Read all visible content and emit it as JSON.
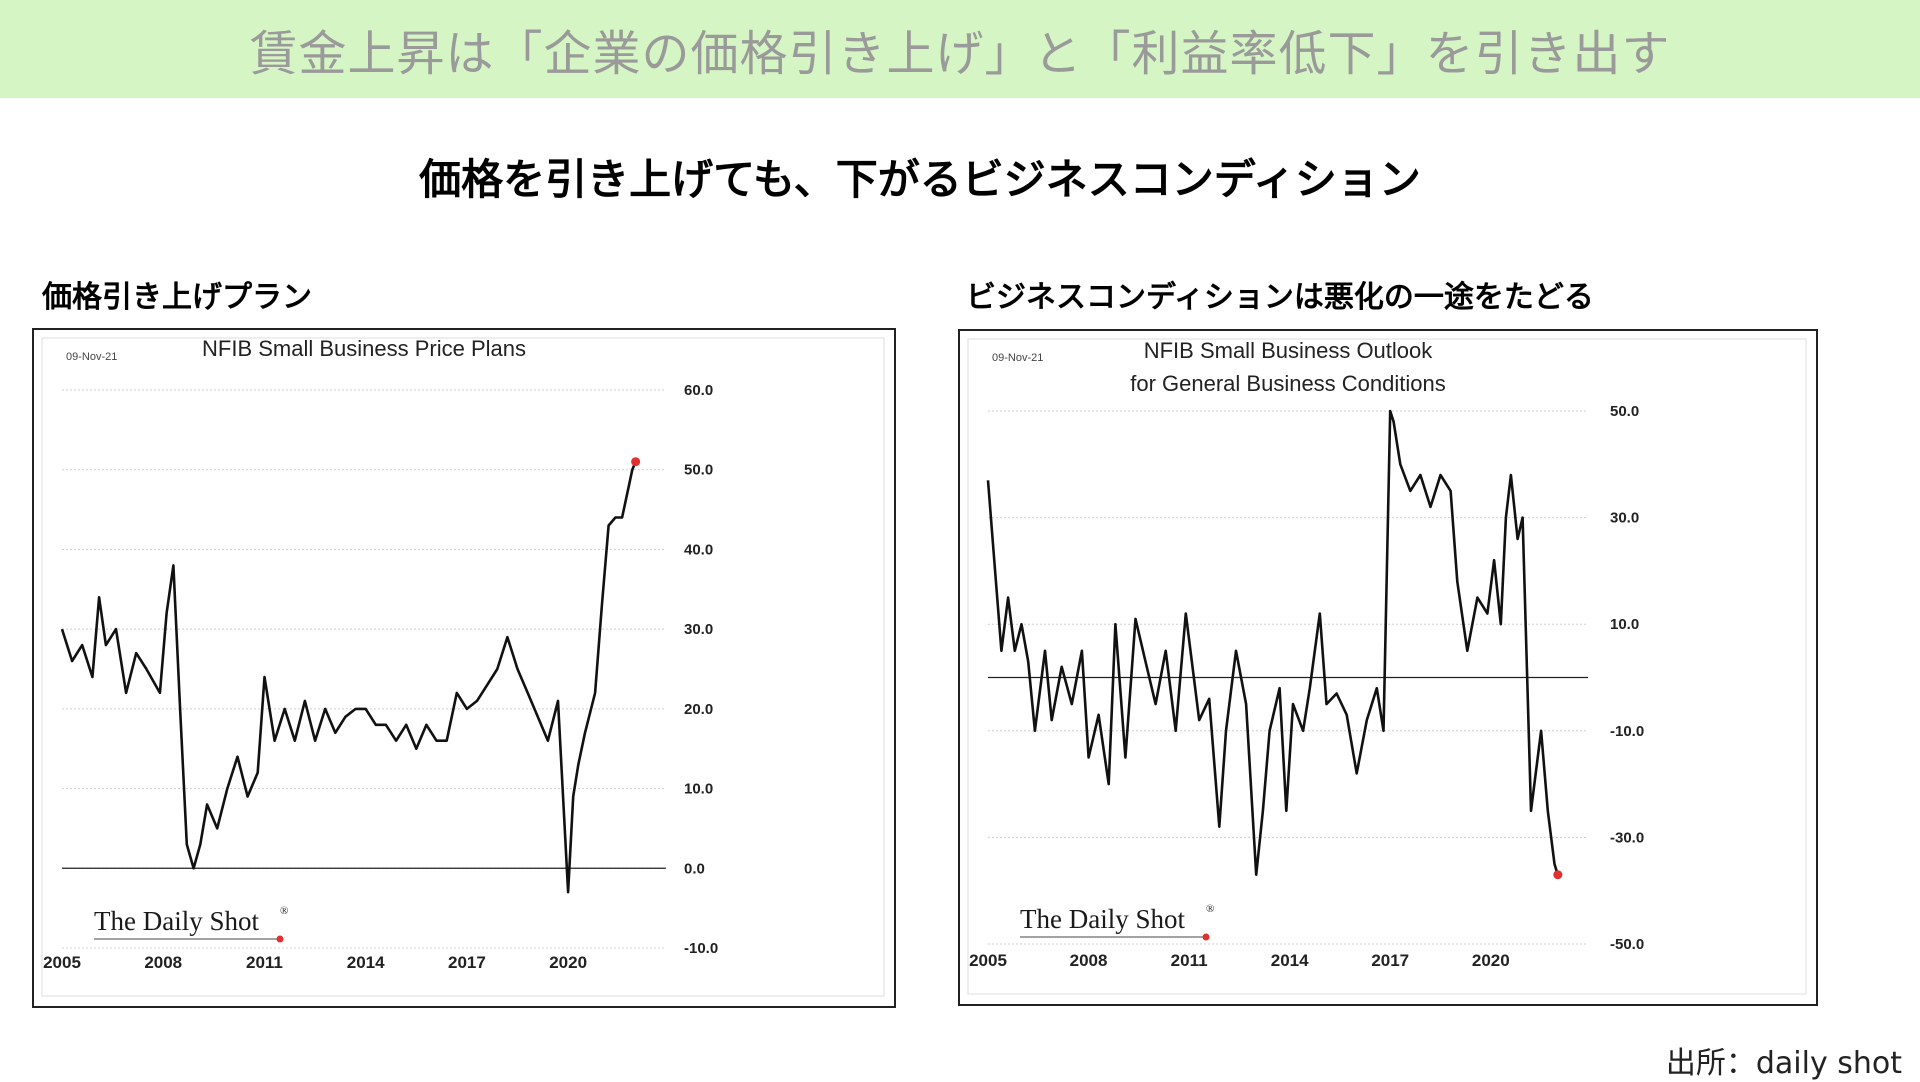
{
  "banner": {
    "title": "賃金上昇は「企業の価格引き上げ」と「利益率低下」を引き出す"
  },
  "subtitle": "価格を引き上げても、下がるビジネスコンディション",
  "panels": [
    {
      "label": "価格引き上げプラン"
    },
    {
      "label": "ビジネスコンディションは悪化の一途をたどる"
    }
  ],
  "source": "出所：daily shot",
  "chart_data": [
    {
      "type": "line",
      "date_stamp": "09-Nov-21",
      "title": "NFIB Small Business Price Plans",
      "title_lines": [
        "NFIB Small Business Price Plans"
      ],
      "watermark": "The Daily Shot",
      "watermark_mark": "®",
      "x_ticks": [
        2005,
        2008,
        2011,
        2014,
        2017,
        2020
      ],
      "xlim": [
        2005,
        2022.9
      ],
      "y_ticks": [
        "60.0",
        "50.0",
        "40.0",
        "30.0",
        "20.0",
        "10.0",
        "0.0",
        "-10.0"
      ],
      "ylim": [
        -10,
        60
      ],
      "zero_line": 0,
      "grid": "horizontal-dotted",
      "axis_side": "right",
      "line_color": "#111111",
      "end_marker_color": "#e03030",
      "series": [
        {
          "x": [
            2005.0,
            2005.3,
            2005.6,
            2005.9,
            2006.1,
            2006.3,
            2006.6,
            2006.9,
            2007.2,
            2007.5,
            2007.9,
            2008.1,
            2008.3,
            2008.5,
            2008.7,
            2008.9,
            2009.1,
            2009.3,
            2009.6,
            2009.9,
            2010.2,
            2010.5,
            2010.8,
            2011.0,
            2011.3,
            2011.6,
            2011.9,
            2012.2,
            2012.5,
            2012.8,
            2013.1,
            2013.4,
            2013.7,
            2014.0,
            2014.3,
            2014.6,
            2014.9,
            2015.2,
            2015.5,
            2015.8,
            2016.1,
            2016.4,
            2016.7,
            2017.0,
            2017.3,
            2017.6,
            2017.9,
            2018.2,
            2018.5,
            2018.8,
            2019.1,
            2019.4,
            2019.7,
            2020.0,
            2020.15,
            2020.3,
            2020.5,
            2020.8,
            2021.0,
            2021.2,
            2021.4,
            2021.6,
            2021.8,
            2021.9,
            2022.0
          ],
          "y": [
            30,
            26,
            28,
            24,
            34,
            28,
            30,
            22,
            27,
            25,
            22,
            32,
            38,
            20,
            3,
            0,
            3,
            8,
            5,
            10,
            14,
            9,
            12,
            24,
            16,
            20,
            16,
            21,
            16,
            20,
            17,
            19,
            20,
            20,
            18,
            18,
            16,
            18,
            15,
            18,
            16,
            16,
            22,
            20,
            21,
            23,
            25,
            29,
            25,
            22,
            19,
            16,
            21,
            -3,
            9,
            13,
            17,
            22,
            33,
            43,
            44,
            44,
            48,
            50,
            51
          ]
        }
      ]
    },
    {
      "type": "line",
      "date_stamp": "09-Nov-21",
      "title": "NFIB Small Business Outlook for General Business Conditions",
      "title_lines": [
        "NFIB Small Business Outlook",
        "for General Business Conditions"
      ],
      "watermark": "The Daily Shot",
      "watermark_mark": "®",
      "x_ticks": [
        2005,
        2008,
        2011,
        2014,
        2017,
        2020
      ],
      "xlim": [
        2005,
        2022.9
      ],
      "y_ticks": [
        "50.0",
        "30.0",
        "10.0",
        "-10.0",
        "-30.0",
        "-50.0"
      ],
      "ylim": [
        -50,
        50
      ],
      "zero_line": 0,
      "grid": "horizontal-dotted",
      "axis_side": "right",
      "line_color": "#111111",
      "end_marker_color": "#e03030",
      "series": [
        {
          "x": [
            2005.0,
            2005.15,
            2005.4,
            2005.6,
            2005.8,
            2006.0,
            2006.2,
            2006.4,
            2006.7,
            2006.9,
            2007.2,
            2007.5,
            2007.8,
            2008.0,
            2008.3,
            2008.6,
            2008.8,
            2009.1,
            2009.4,
            2009.7,
            2010.0,
            2010.3,
            2010.6,
            2010.9,
            2011.1,
            2011.3,
            2011.6,
            2011.9,
            2012.1,
            2012.4,
            2012.7,
            2013.0,
            2013.2,
            2013.4,
            2013.7,
            2013.9,
            2014.1,
            2014.4,
            2014.6,
            2014.9,
            2015.1,
            2015.4,
            2015.7,
            2016.0,
            2016.3,
            2016.6,
            2016.8,
            2017.0,
            2017.1,
            2017.3,
            2017.6,
            2017.9,
            2018.2,
            2018.5,
            2018.8,
            2019.0,
            2019.3,
            2019.6,
            2019.9,
            2020.1,
            2020.3,
            2020.45,
            2020.6,
            2020.8,
            2020.95,
            2021.2,
            2021.5,
            2021.7,
            2021.9,
            2022.0
          ],
          "y": [
            37,
            25,
            5,
            15,
            5,
            10,
            3,
            -10,
            5,
            -8,
            2,
            -5,
            5,
            -15,
            -7,
            -20,
            10,
            -15,
            11,
            3,
            -5,
            5,
            -10,
            12,
            2,
            -8,
            -4,
            -28,
            -10,
            5,
            -5,
            -37,
            -25,
            -10,
            -2,
            -25,
            -5,
            -10,
            -2,
            12,
            -5,
            -3,
            -7,
            -18,
            -8,
            -2,
            -10,
            50,
            48,
            40,
            35,
            38,
            32,
            38,
            35,
            18,
            5,
            15,
            12,
            22,
            10,
            30,
            38,
            26,
            30,
            -25,
            -10,
            -25,
            -35,
            -37
          ]
        }
      ]
    }
  ]
}
